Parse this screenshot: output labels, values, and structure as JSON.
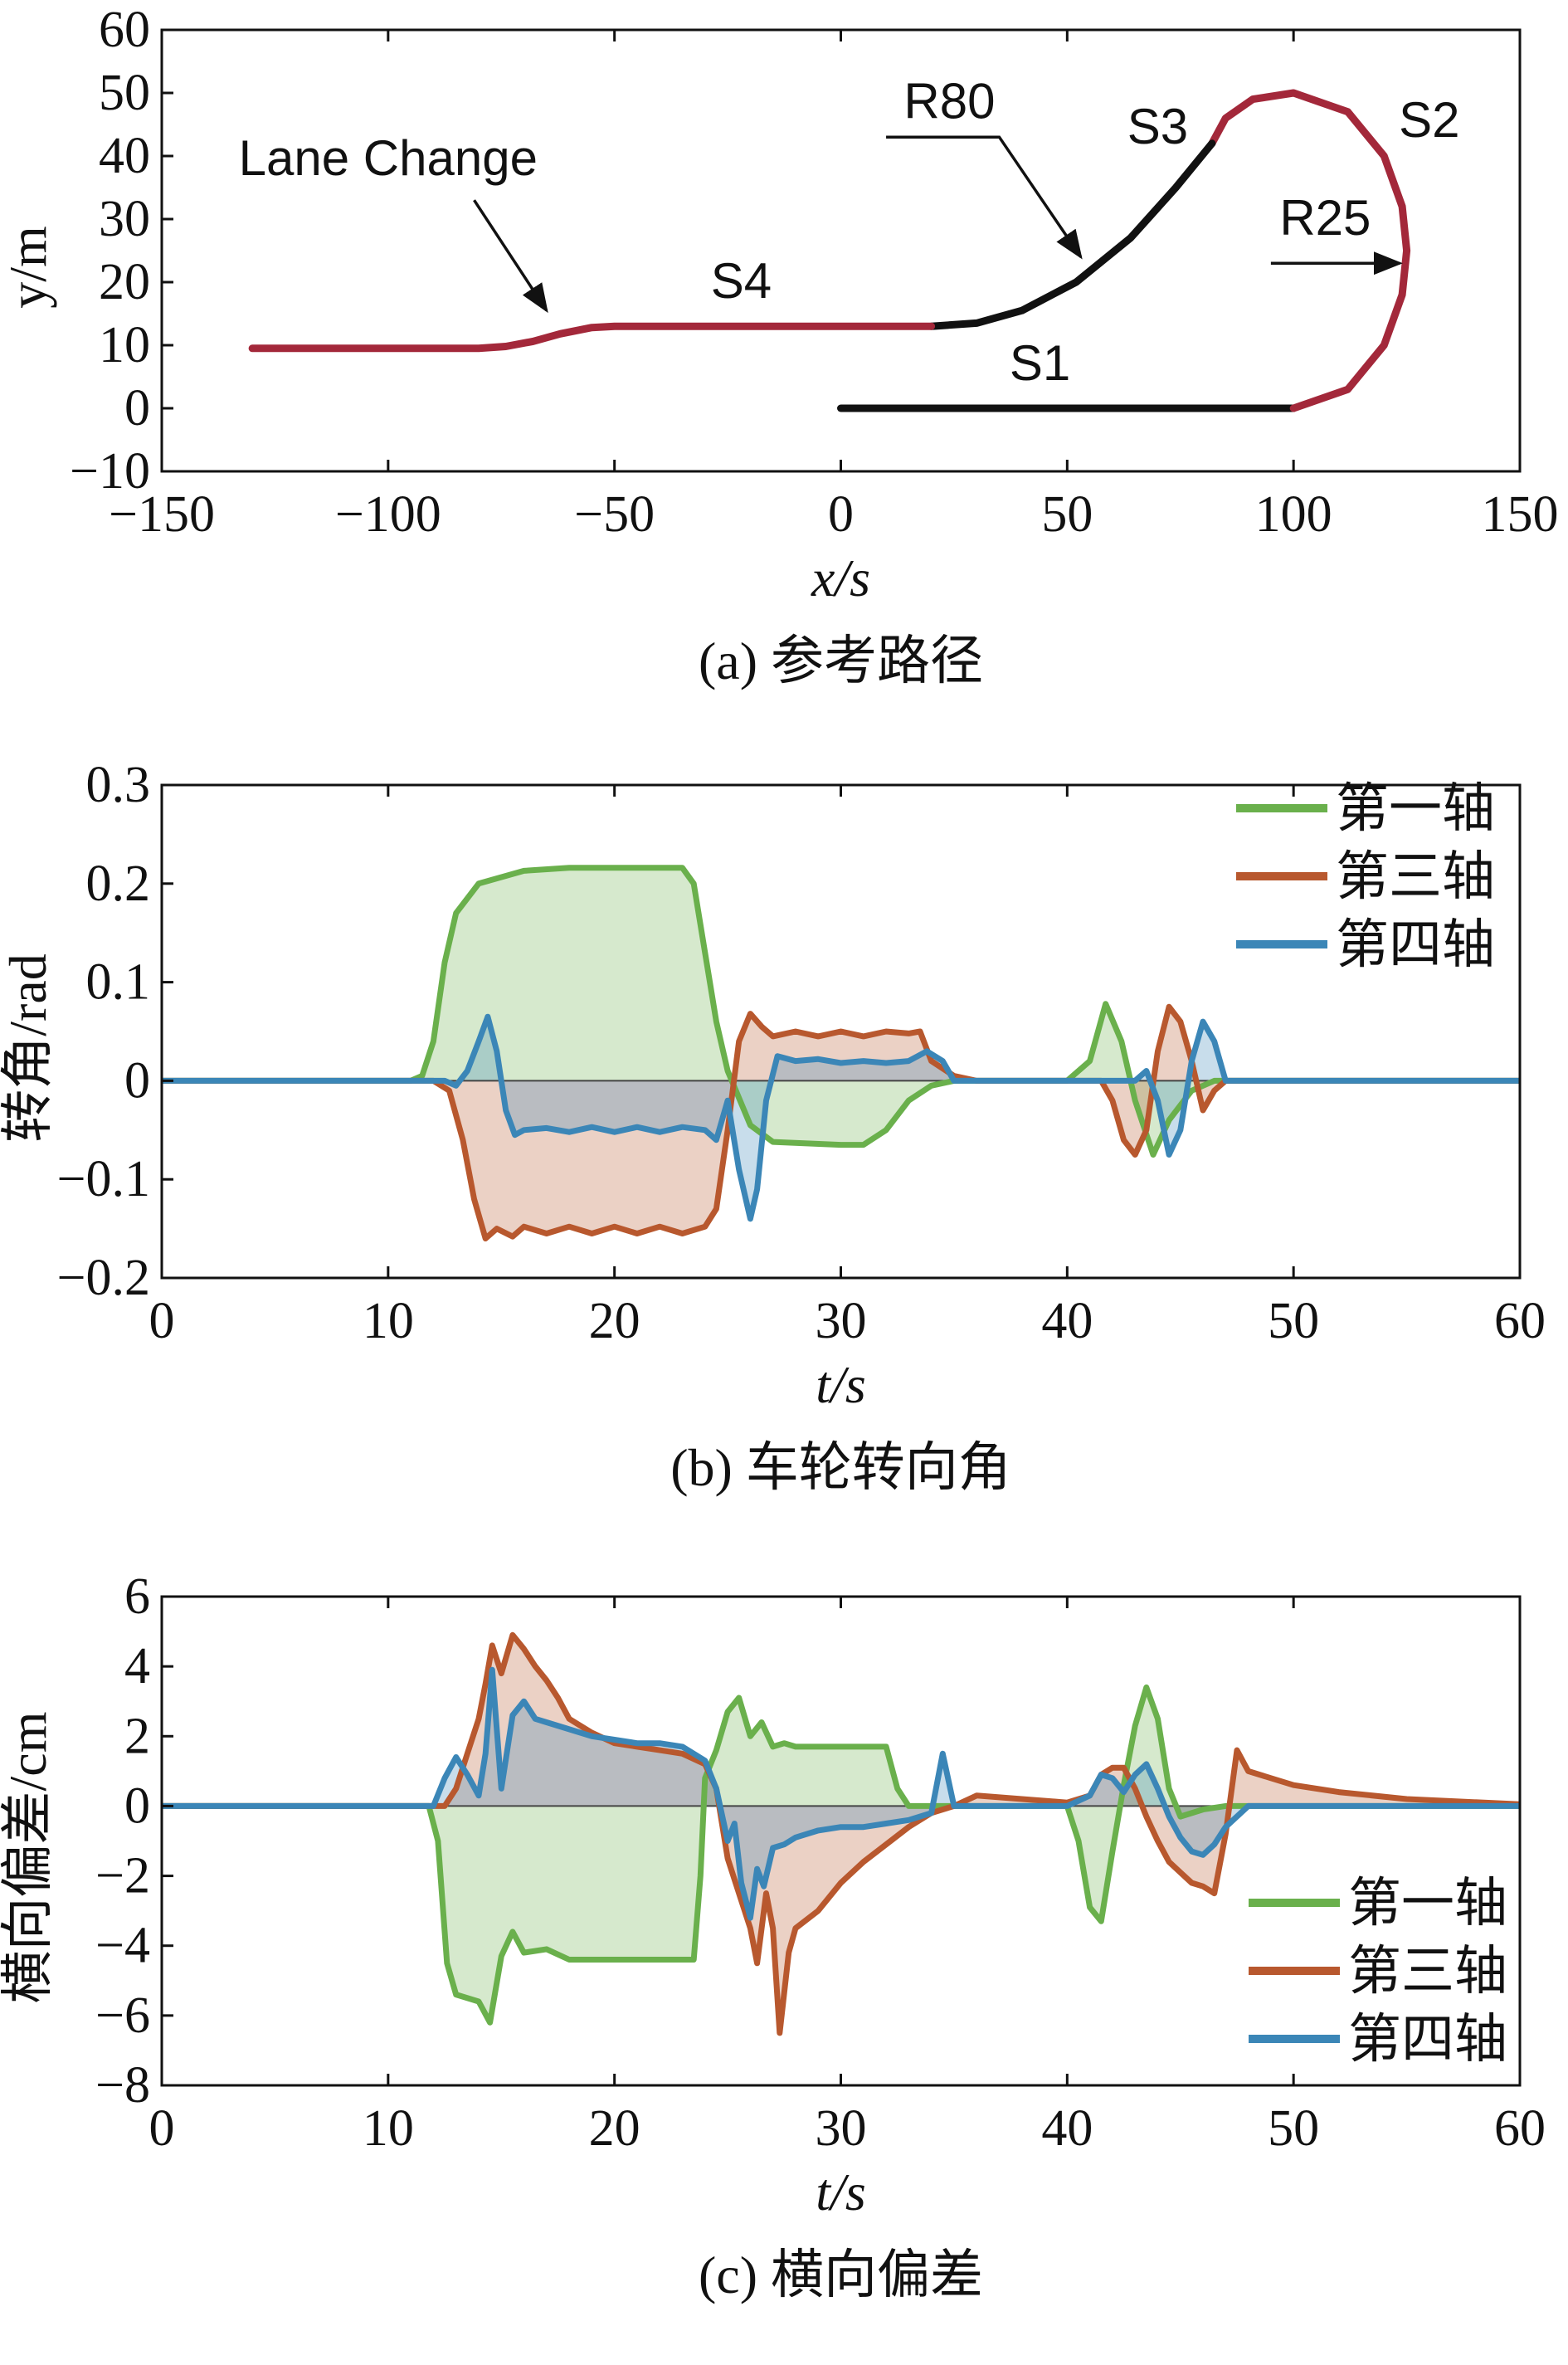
{
  "colors": {
    "green": "#6ab04c",
    "red": "#b8582e",
    "blue": "#3b86b7",
    "path_red": "#a3283a",
    "path_black": "#111111"
  },
  "chart_data": [
    {
      "type": "line",
      "caption": "(a) 参考路径",
      "xlabel": "x/s",
      "ylabel": "y/m",
      "xlim": [
        -150,
        150
      ],
      "ylim": [
        -10,
        60
      ],
      "xticks": [
        "−150",
        "−100",
        "−50",
        "0",
        "50",
        "100",
        "150"
      ],
      "yticks": [
        "−10",
        "0",
        "10",
        "20",
        "30",
        "40",
        "50",
        "60"
      ],
      "annotations": [
        "Lane Change",
        "S4",
        "R80",
        "S3",
        "S2",
        "R25",
        "S1"
      ],
      "segments": [
        {
          "label": "S1",
          "color": "black",
          "points": [
            [
              0,
              0
            ],
            [
              100,
              0
            ]
          ]
        },
        {
          "label": "S2",
          "color": "red",
          "points": [
            [
              100,
              0
            ],
            [
              112,
              3
            ],
            [
              120,
              10
            ],
            [
              124,
              18
            ],
            [
              125,
              25
            ],
            [
              124,
              32
            ],
            [
              120,
              40
            ],
            [
              112,
              47
            ],
            [
              100,
              50
            ],
            [
              91,
              49
            ],
            [
              85,
              46
            ],
            [
              82,
              42
            ]
          ]
        },
        {
          "label": "S3",
          "color": "black",
          "points": [
            [
              82,
              42
            ],
            [
              74,
              35
            ],
            [
              64,
              27
            ],
            [
              52,
              20
            ],
            [
              40,
              15.5
            ],
            [
              30,
              13.5
            ],
            [
              20,
              13
            ]
          ]
        },
        {
          "label": "S4",
          "color": "red",
          "points": [
            [
              20,
              13
            ],
            [
              -50,
              13
            ],
            [
              -55,
              12.8
            ],
            [
              -62,
              11.8
            ],
            [
              -68,
              10.6
            ],
            [
              -74,
              9.8
            ],
            [
              -80,
              9.5
            ],
            [
              -130,
              9.5
            ]
          ]
        }
      ]
    },
    {
      "type": "area",
      "caption": "(b) 车轮转向角",
      "xlabel": "t/s",
      "ylabel": "转角/rad",
      "xlim": [
        0,
        60
      ],
      "ylim": [
        -0.2,
        0.3
      ],
      "xticks": [
        "0",
        "10",
        "20",
        "30",
        "40",
        "50",
        "60"
      ],
      "yticks": [
        "−0.2",
        "−0.1",
        "0",
        "0.1",
        "0.2",
        "0.3"
      ],
      "legend": "top-right",
      "series": [
        {
          "name": "第一轴",
          "color": "green",
          "x": [
            0,
            11,
            11.5,
            12,
            12.5,
            13,
            14,
            16,
            18,
            20,
            22,
            23,
            23.5,
            24,
            24.5,
            25,
            26,
            27,
            30,
            31,
            32,
            33,
            34,
            35,
            40,
            41,
            41.7,
            42.4,
            43,
            43.8,
            44.5,
            45.5,
            46.5,
            47.5,
            60
          ],
          "y": [
            0,
            0,
            0.005,
            0.04,
            0.12,
            0.17,
            0.2,
            0.213,
            0.216,
            0.216,
            0.216,
            0.216,
            0.2,
            0.13,
            0.06,
            0.01,
            -0.045,
            -0.062,
            -0.065,
            -0.065,
            -0.05,
            -0.02,
            -0.005,
            0,
            0,
            0.02,
            0.078,
            0.04,
            -0.02,
            -0.075,
            -0.04,
            -0.01,
            0,
            0,
            0
          ]
        },
        {
          "name": "第三轴",
          "color": "red",
          "x": [
            0,
            12,
            12.7,
            13.3,
            13.8,
            14.3,
            14.8,
            15.5,
            16,
            17,
            18,
            19,
            20,
            21,
            22,
            23,
            24,
            24.5,
            25,
            25.5,
            26,
            26.5,
            27,
            28,
            29,
            30,
            31,
            32,
            33,
            33.5,
            34,
            35,
            36,
            40,
            41.5,
            42,
            42.5,
            43,
            43.5,
            44,
            44.5,
            45,
            45.5,
            46,
            46.5,
            47,
            48,
            60
          ],
          "y": [
            0,
            0,
            -0.01,
            -0.06,
            -0.12,
            -0.16,
            -0.15,
            -0.158,
            -0.148,
            -0.155,
            -0.148,
            -0.155,
            -0.148,
            -0.155,
            -0.148,
            -0.155,
            -0.148,
            -0.13,
            -0.05,
            0.04,
            0.068,
            0.055,
            0.045,
            0.05,
            0.045,
            0.05,
            0.045,
            0.05,
            0.048,
            0.05,
            0.02,
            0.005,
            0,
            0,
            0,
            -0.02,
            -0.06,
            -0.075,
            -0.05,
            0.03,
            0.075,
            0.06,
            0.02,
            -0.03,
            -0.01,
            0,
            0,
            0
          ]
        },
        {
          "name": "第四轴",
          "color": "blue",
          "x": [
            0,
            12.5,
            13,
            13.5,
            14,
            14.4,
            14.8,
            15.2,
            15.6,
            16,
            17,
            18,
            19,
            20,
            21,
            22,
            23,
            24,
            24.5,
            25,
            25.5,
            26,
            26.3,
            26.7,
            27.2,
            28,
            29,
            30,
            31,
            32,
            33,
            33.8,
            34.5,
            35,
            36,
            40,
            43,
            43.5,
            44,
            44.5,
            45,
            45.5,
            46,
            46.5,
            47,
            48,
            60
          ],
          "y": [
            0,
            0,
            -0.005,
            0.01,
            0.04,
            0.065,
            0.03,
            -0.03,
            -0.055,
            -0.05,
            -0.048,
            -0.052,
            -0.047,
            -0.052,
            -0.047,
            -0.052,
            -0.047,
            -0.05,
            -0.06,
            -0.02,
            -0.09,
            -0.14,
            -0.11,
            -0.02,
            0.025,
            0.02,
            0.022,
            0.018,
            0.02,
            0.018,
            0.02,
            0.03,
            0.02,
            0,
            0,
            0,
            0,
            0.01,
            -0.02,
            -0.075,
            -0.05,
            0.02,
            0.06,
            0.04,
            0,
            0,
            0
          ]
        }
      ]
    },
    {
      "type": "area",
      "caption": "(c) 横向偏差",
      "xlabel": "t/s",
      "ylabel": "横向偏差/cm",
      "xlim": [
        0,
        60
      ],
      "ylim": [
        -8,
        6
      ],
      "xticks": [
        "0",
        "10",
        "20",
        "30",
        "40",
        "50",
        "60"
      ],
      "yticks": [
        "−8",
        "−6",
        "−4",
        "−2",
        "0",
        "2",
        "4",
        "6"
      ],
      "legend": "bottom-right",
      "series": [
        {
          "name": "第一轴",
          "color": "green",
          "x": [
            0,
            11.8,
            12.2,
            12.6,
            13,
            14,
            14.5,
            15,
            15.5,
            16,
            17,
            18,
            20,
            22,
            23.5,
            23.8,
            24,
            24.5,
            25,
            25.5,
            26,
            26.5,
            27,
            27.5,
            28,
            30,
            32,
            32.5,
            33,
            34,
            40,
            40.5,
            41,
            41.5,
            42,
            42.5,
            43,
            43.5,
            44,
            44.5,
            45,
            46,
            47,
            60
          ],
          "y": [
            0,
            0,
            -1,
            -4.5,
            -5.4,
            -5.6,
            -6.2,
            -4.3,
            -3.6,
            -4.2,
            -4.1,
            -4.4,
            -4.4,
            -4.4,
            -4.4,
            -2,
            0.8,
            1.6,
            2.7,
            3.1,
            2,
            2.4,
            1.7,
            1.8,
            1.7,
            1.7,
            1.7,
            0.5,
            0,
            0,
            0,
            -1,
            -2.9,
            -3.3,
            -1.3,
            0.6,
            2.3,
            3.4,
            2.5,
            0.5,
            -0.3,
            -0.1,
            0,
            0
          ]
        },
        {
          "name": "第三轴",
          "color": "red",
          "x": [
            0,
            12.5,
            13,
            13.5,
            14,
            14.3,
            14.6,
            15,
            15.5,
            16,
            16.5,
            17,
            17.5,
            18,
            19,
            20,
            21,
            22,
            23,
            24,
            24.5,
            25,
            25.5,
            26,
            26.3,
            26.7,
            27,
            27.3,
            27.7,
            28,
            29,
            30,
            31,
            32,
            33,
            34,
            35,
            36,
            38,
            40,
            41,
            41.5,
            42,
            42.5,
            43,
            43.5,
            44,
            44.5,
            45,
            45.5,
            46,
            46.5,
            47,
            47.5,
            48,
            49,
            50,
            52,
            55,
            60
          ],
          "y": [
            0,
            0,
            0.5,
            1.5,
            2.5,
            3.5,
            4.6,
            3.8,
            4.9,
            4.5,
            4,
            3.6,
            3.1,
            2.5,
            2.1,
            1.8,
            1.7,
            1.6,
            1.5,
            1.2,
            0.5,
            -1.5,
            -2.5,
            -3.5,
            -4.5,
            -2.5,
            -3.5,
            -6.5,
            -4.2,
            -3.5,
            -3,
            -2.2,
            -1.6,
            -1.1,
            -0.6,
            -0.2,
            0,
            0.3,
            0.2,
            0.1,
            0.3,
            0.9,
            1.1,
            1.1,
            0.5,
            -0.3,
            -1,
            -1.6,
            -1.9,
            -2.2,
            -2.3,
            -2.5,
            -0.8,
            1.6,
            1,
            0.8,
            0.6,
            0.4,
            0.2,
            0.05
          ]
        },
        {
          "name": "第四轴",
          "color": "blue",
          "x": [
            0,
            12,
            12.5,
            13,
            13.5,
            14,
            14.3,
            14.6,
            15,
            15.5,
            16,
            16.5,
            17,
            18,
            19,
            20,
            21,
            22,
            23,
            24,
            24.5,
            25,
            25.3,
            25.6,
            26,
            26.3,
            26.6,
            27,
            27.5,
            28,
            29,
            30,
            31,
            32,
            33,
            34,
            34.5,
            35,
            36,
            38,
            40,
            41,
            41.5,
            42,
            42.5,
            43,
            43.5,
            44,
            44.5,
            45,
            45.5,
            46,
            46.5,
            47,
            48,
            60
          ],
          "y": [
            0,
            0,
            0.8,
            1.4,
            0.9,
            0.3,
            1.5,
            3.9,
            0.5,
            2.6,
            3,
            2.5,
            2.4,
            2.2,
            2,
            1.9,
            1.8,
            1.8,
            1.7,
            1.3,
            0.5,
            -1,
            -0.5,
            -2.2,
            -3.2,
            -1.8,
            -2.3,
            -1.2,
            -1.1,
            -0.9,
            -0.7,
            -0.6,
            -0.6,
            -0.5,
            -0.4,
            -0.2,
            1.5,
            0,
            0,
            0,
            0,
            0.3,
            0.9,
            0.8,
            0.4,
            0.9,
            1.2,
            0.5,
            -0.3,
            -0.9,
            -1.3,
            -1.4,
            -1.1,
            -0.6,
            0,
            0
          ]
        }
      ]
    }
  ]
}
